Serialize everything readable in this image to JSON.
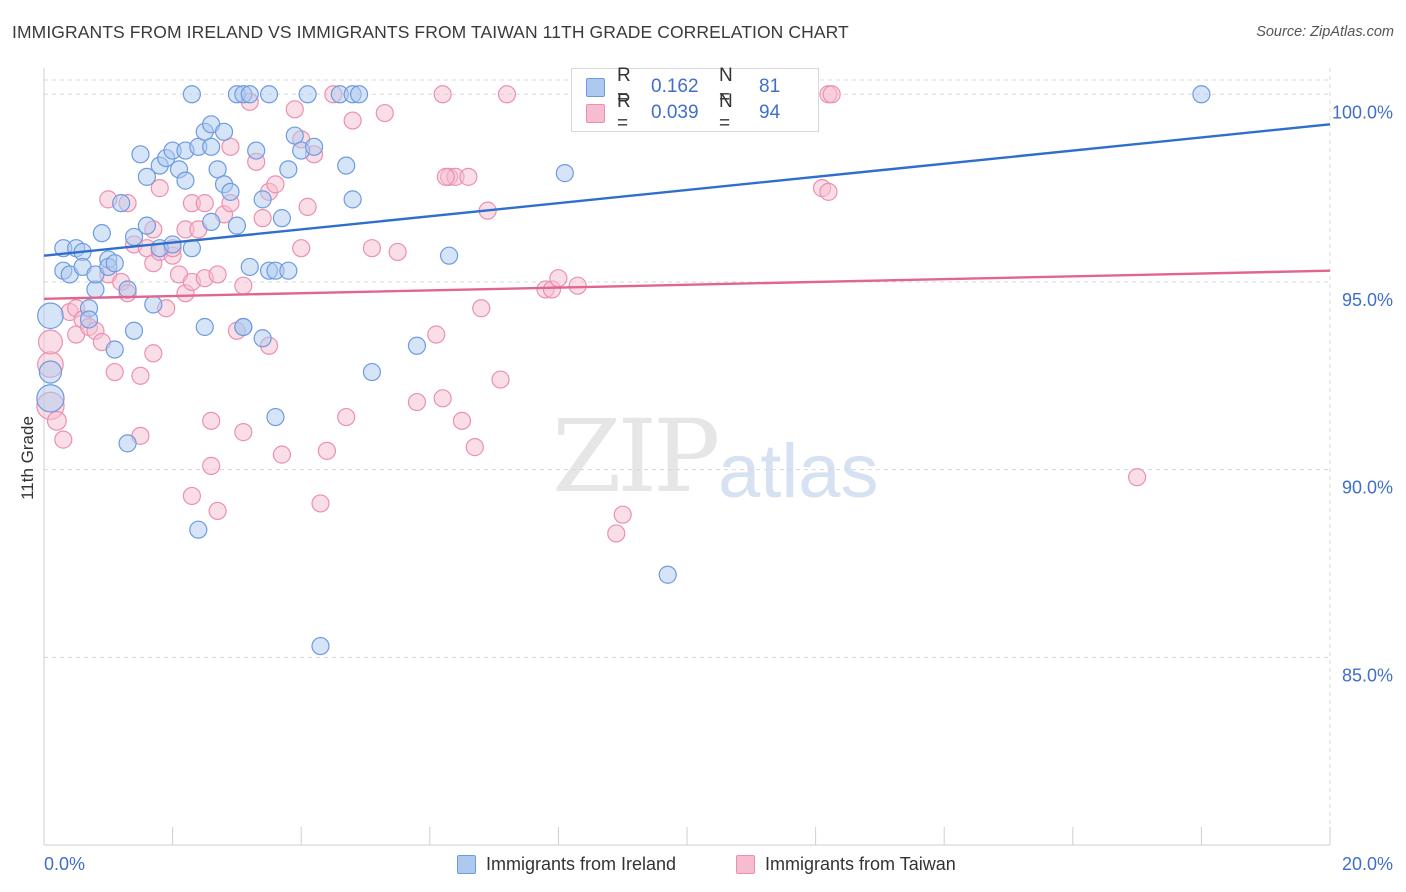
{
  "header": {
    "title": "IMMIGRANTS FROM IRELAND VS IMMIGRANTS FROM TAIWAN 11TH GRADE CORRELATION CHART",
    "source": "Source: ZipAtlas.com"
  },
  "watermark": {
    "zip": "ZIP",
    "atlas": "atlas"
  },
  "colors": {
    "ireland_fill": "#aec9ef",
    "ireland_stroke": "#6e9be0",
    "ireland_line": "#2f6fcc",
    "taiwan_fill": "#f6bdd0",
    "taiwan_stroke": "#ec90b0",
    "taiwan_line": "#e0668f",
    "tick_label": "#3f6fc8",
    "grid": "#d8d8d8"
  },
  "legend_top": {
    "rows": [
      {
        "r_label": "R =",
        "r_value": "0.162",
        "n_label": "N =",
        "n_value": "81"
      },
      {
        "r_label": "R =",
        "r_value": "0.039",
        "n_label": "N =",
        "n_value": "94"
      }
    ]
  },
  "legend_bottom": {
    "ireland": "Immigrants from Ireland",
    "taiwan": "Immigrants from Taiwan"
  },
  "chart_data": {
    "type": "scatter",
    "title": "IMMIGRANTS FROM IRELAND VS IMMIGRANTS FROM TAIWAN 11TH GRADE CORRELATION CHART",
    "ylabel": "11th Grade",
    "xlabel": "",
    "xlim": [
      0,
      20
    ],
    "ylim": [
      80,
      100.7
    ],
    "x_tick_labels": [
      "0.0%",
      "20.0%"
    ],
    "y_ticks": [
      {
        "value": 100,
        "label": "100.0%"
      },
      {
        "value": 95,
        "label": "95.0%"
      },
      {
        "value": 90,
        "label": "90.0%"
      },
      {
        "value": 85,
        "label": "85.0%"
      }
    ],
    "grid": true,
    "legend_position": "bottom",
    "series": [
      {
        "name": "Immigrants from Ireland",
        "r": 0.162,
        "n": 81,
        "trend": [
          [
            0,
            95.7
          ],
          [
            20,
            99.2
          ]
        ],
        "points": [
          [
            0.1,
            94.1,
            1.5
          ],
          [
            0.1,
            92.6,
            1.3
          ],
          [
            0.1,
            91.9,
            1.6
          ],
          [
            0.3,
            95.9,
            1
          ],
          [
            0.3,
            95.3,
            1
          ],
          [
            0.4,
            95.2,
            1
          ],
          [
            0.5,
            95.9,
            1
          ],
          [
            0.6,
            95.8,
            1
          ],
          [
            0.6,
            95.4,
            1
          ],
          [
            0.7,
            94.3,
            1
          ],
          [
            0.7,
            94.0,
            1
          ],
          [
            0.8,
            94.8,
            1
          ],
          [
            0.8,
            95.2,
            1
          ],
          [
            0.9,
            96.3,
            1
          ],
          [
            1.0,
            95.6,
            1
          ],
          [
            1.0,
            95.4,
            1
          ],
          [
            1.1,
            95.5,
            1
          ],
          [
            1.1,
            93.2,
            1
          ],
          [
            1.2,
            97.1,
            1
          ],
          [
            1.3,
            94.8,
            1
          ],
          [
            1.3,
            90.7,
            1
          ],
          [
            1.4,
            93.7,
            1
          ],
          [
            1.4,
            96.2,
            1
          ],
          [
            1.5,
            98.4,
            1
          ],
          [
            1.6,
            97.8,
            1
          ],
          [
            1.6,
            96.5,
            1
          ],
          [
            1.7,
            94.4,
            1
          ],
          [
            1.8,
            98.1,
            1
          ],
          [
            1.8,
            95.9,
            1
          ],
          [
            1.9,
            98.3,
            1
          ],
          [
            2.0,
            98.5,
            1
          ],
          [
            2.0,
            96.0,
            1
          ],
          [
            2.1,
            98.0,
            1
          ],
          [
            2.2,
            98.5,
            1
          ],
          [
            2.2,
            97.7,
            1
          ],
          [
            2.3,
            95.9,
            1
          ],
          [
            2.3,
            100.0,
            1
          ],
          [
            2.4,
            88.4,
            1
          ],
          [
            2.4,
            98.6,
            1
          ],
          [
            2.5,
            99.0,
            1
          ],
          [
            2.5,
            93.8,
            1
          ],
          [
            2.6,
            96.6,
            1
          ],
          [
            2.6,
            99.2,
            1
          ],
          [
            2.6,
            98.6,
            1
          ],
          [
            2.7,
            98.0,
            1
          ],
          [
            2.8,
            97.6,
            1
          ],
          [
            2.8,
            99.0,
            1
          ],
          [
            2.9,
            97.4,
            1
          ],
          [
            3.0,
            96.5,
            1
          ],
          [
            3.0,
            100.0,
            1
          ],
          [
            3.1,
            100.0,
            1
          ],
          [
            3.1,
            93.8,
            1
          ],
          [
            3.1,
            93.8,
            1
          ],
          [
            3.2,
            100.0,
            1
          ],
          [
            3.2,
            95.4,
            1
          ],
          [
            3.3,
            98.5,
            1
          ],
          [
            3.4,
            97.2,
            1
          ],
          [
            3.4,
            93.5,
            1
          ],
          [
            3.5,
            100.0,
            1
          ],
          [
            3.5,
            95.3,
            1
          ],
          [
            3.6,
            95.3,
            1
          ],
          [
            3.6,
            91.4,
            1
          ],
          [
            3.7,
            96.7,
            1
          ],
          [
            3.8,
            95.3,
            1
          ],
          [
            3.8,
            98.0,
            1
          ],
          [
            3.9,
            98.9,
            1
          ],
          [
            4.0,
            98.5,
            1
          ],
          [
            4.1,
            100.0,
            1
          ],
          [
            4.2,
            98.6,
            1
          ],
          [
            4.3,
            85.3,
            1
          ],
          [
            4.6,
            100.0,
            1
          ],
          [
            4.7,
            98.1,
            1
          ],
          [
            4.8,
            100.0,
            1
          ],
          [
            4.8,
            97.2,
            1
          ],
          [
            4.9,
            100.0,
            1
          ],
          [
            5.1,
            92.6,
            1
          ],
          [
            5.8,
            93.3,
            1
          ],
          [
            6.3,
            95.7,
            1
          ],
          [
            8.1,
            97.9,
            1
          ],
          [
            9.7,
            87.2,
            1
          ],
          [
            18.0,
            100.0,
            1
          ]
        ]
      },
      {
        "name": "Immigrants from Taiwan",
        "r": 0.039,
        "n": 94,
        "trend": [
          [
            0,
            94.55
          ],
          [
            20,
            95.3
          ]
        ],
        "points": [
          [
            0.1,
            92.8,
            1.5
          ],
          [
            0.1,
            91.7,
            1.6
          ],
          [
            0.1,
            93.4,
            1.4
          ],
          [
            0.2,
            91.3,
            1.1
          ],
          [
            0.3,
            90.8,
            1
          ],
          [
            0.4,
            94.2,
            1
          ],
          [
            0.5,
            94.3,
            1
          ],
          [
            0.5,
            93.6,
            1
          ],
          [
            0.6,
            94.0,
            1
          ],
          [
            0.7,
            93.8,
            1
          ],
          [
            0.8,
            93.7,
            1
          ],
          [
            0.9,
            93.4,
            1
          ],
          [
            1.0,
            95.2,
            1
          ],
          [
            1.0,
            97.2,
            1
          ],
          [
            1.1,
            92.6,
            1
          ],
          [
            1.2,
            95.0,
            1
          ],
          [
            1.3,
            94.7,
            1
          ],
          [
            1.3,
            97.1,
            1
          ],
          [
            1.4,
            96.0,
            1
          ],
          [
            1.5,
            92.5,
            1
          ],
          [
            1.5,
            90.9,
            1
          ],
          [
            1.6,
            95.9,
            1
          ],
          [
            1.7,
            96.4,
            1
          ],
          [
            1.7,
            93.1,
            1
          ],
          [
            1.7,
            95.5,
            1
          ],
          [
            1.8,
            97.5,
            1
          ],
          [
            1.8,
            95.8,
            1
          ],
          [
            1.9,
            94.3,
            1
          ],
          [
            2.0,
            95.7,
            1
          ],
          [
            2.0,
            95.9,
            1
          ],
          [
            2.1,
            95.2,
            1
          ],
          [
            2.2,
            96.4,
            1
          ],
          [
            2.2,
            94.7,
            1
          ],
          [
            2.3,
            95.0,
            1
          ],
          [
            2.3,
            97.1,
            1
          ],
          [
            2.3,
            89.3,
            1
          ],
          [
            2.4,
            96.4,
            1
          ],
          [
            2.5,
            97.1,
            1
          ],
          [
            2.5,
            95.1,
            1
          ],
          [
            2.6,
            90.1,
            1
          ],
          [
            2.6,
            91.3,
            1
          ],
          [
            2.7,
            88.9,
            1
          ],
          [
            2.7,
            95.2,
            1
          ],
          [
            2.8,
            96.8,
            1
          ],
          [
            2.9,
            97.1,
            1
          ],
          [
            2.9,
            98.6,
            1
          ],
          [
            3.0,
            93.7,
            1
          ],
          [
            3.1,
            91.0,
            1
          ],
          [
            3.1,
            94.9,
            1
          ],
          [
            3.2,
            99.8,
            1
          ],
          [
            3.3,
            98.2,
            1
          ],
          [
            3.4,
            96.7,
            1
          ],
          [
            3.5,
            97.4,
            1
          ],
          [
            3.5,
            93.3,
            1
          ],
          [
            3.6,
            97.6,
            1
          ],
          [
            3.7,
            90.4,
            1
          ],
          [
            3.9,
            99.6,
            1
          ],
          [
            4.0,
            95.9,
            1
          ],
          [
            4.0,
            98.8,
            1
          ],
          [
            4.1,
            97.0,
            1
          ],
          [
            4.2,
            98.4,
            1
          ],
          [
            4.3,
            89.1,
            1
          ],
          [
            4.4,
            90.5,
            1
          ],
          [
            4.5,
            100.0,
            1
          ],
          [
            4.7,
            91.4,
            1
          ],
          [
            4.8,
            99.3,
            1
          ],
          [
            5.1,
            95.9,
            1
          ],
          [
            5.3,
            99.5,
            1
          ],
          [
            5.5,
            95.8,
            1
          ],
          [
            5.8,
            91.8,
            1
          ],
          [
            6.1,
            93.6,
            1
          ],
          [
            6.2,
            100.0,
            1
          ],
          [
            6.2,
            91.9,
            1
          ],
          [
            6.3,
            97.8,
            1
          ],
          [
            6.4,
            97.8,
            1
          ],
          [
            6.5,
            91.3,
            1
          ],
          [
            6.6,
            97.8,
            1
          ],
          [
            6.7,
            90.6,
            1
          ],
          [
            6.8,
            94.3,
            1
          ],
          [
            6.9,
            96.9,
            1
          ],
          [
            7.1,
            92.4,
            1
          ],
          [
            7.2,
            100.0,
            1
          ],
          [
            7.8,
            94.8,
            1
          ],
          [
            7.9,
            94.8,
            1
          ],
          [
            8.0,
            95.1,
            1
          ],
          [
            8.3,
            94.9,
            1
          ],
          [
            8.9,
            88.3,
            1
          ],
          [
            9.0,
            88.8,
            1
          ],
          [
            12.1,
            97.5,
            1
          ],
          [
            12.2,
            97.4,
            1
          ],
          [
            12.2,
            100.0,
            1
          ],
          [
            17.0,
            89.8,
            1
          ],
          [
            12.25,
            100.0,
            1
          ],
          [
            6.25,
            97.8,
            1
          ]
        ]
      }
    ]
  }
}
